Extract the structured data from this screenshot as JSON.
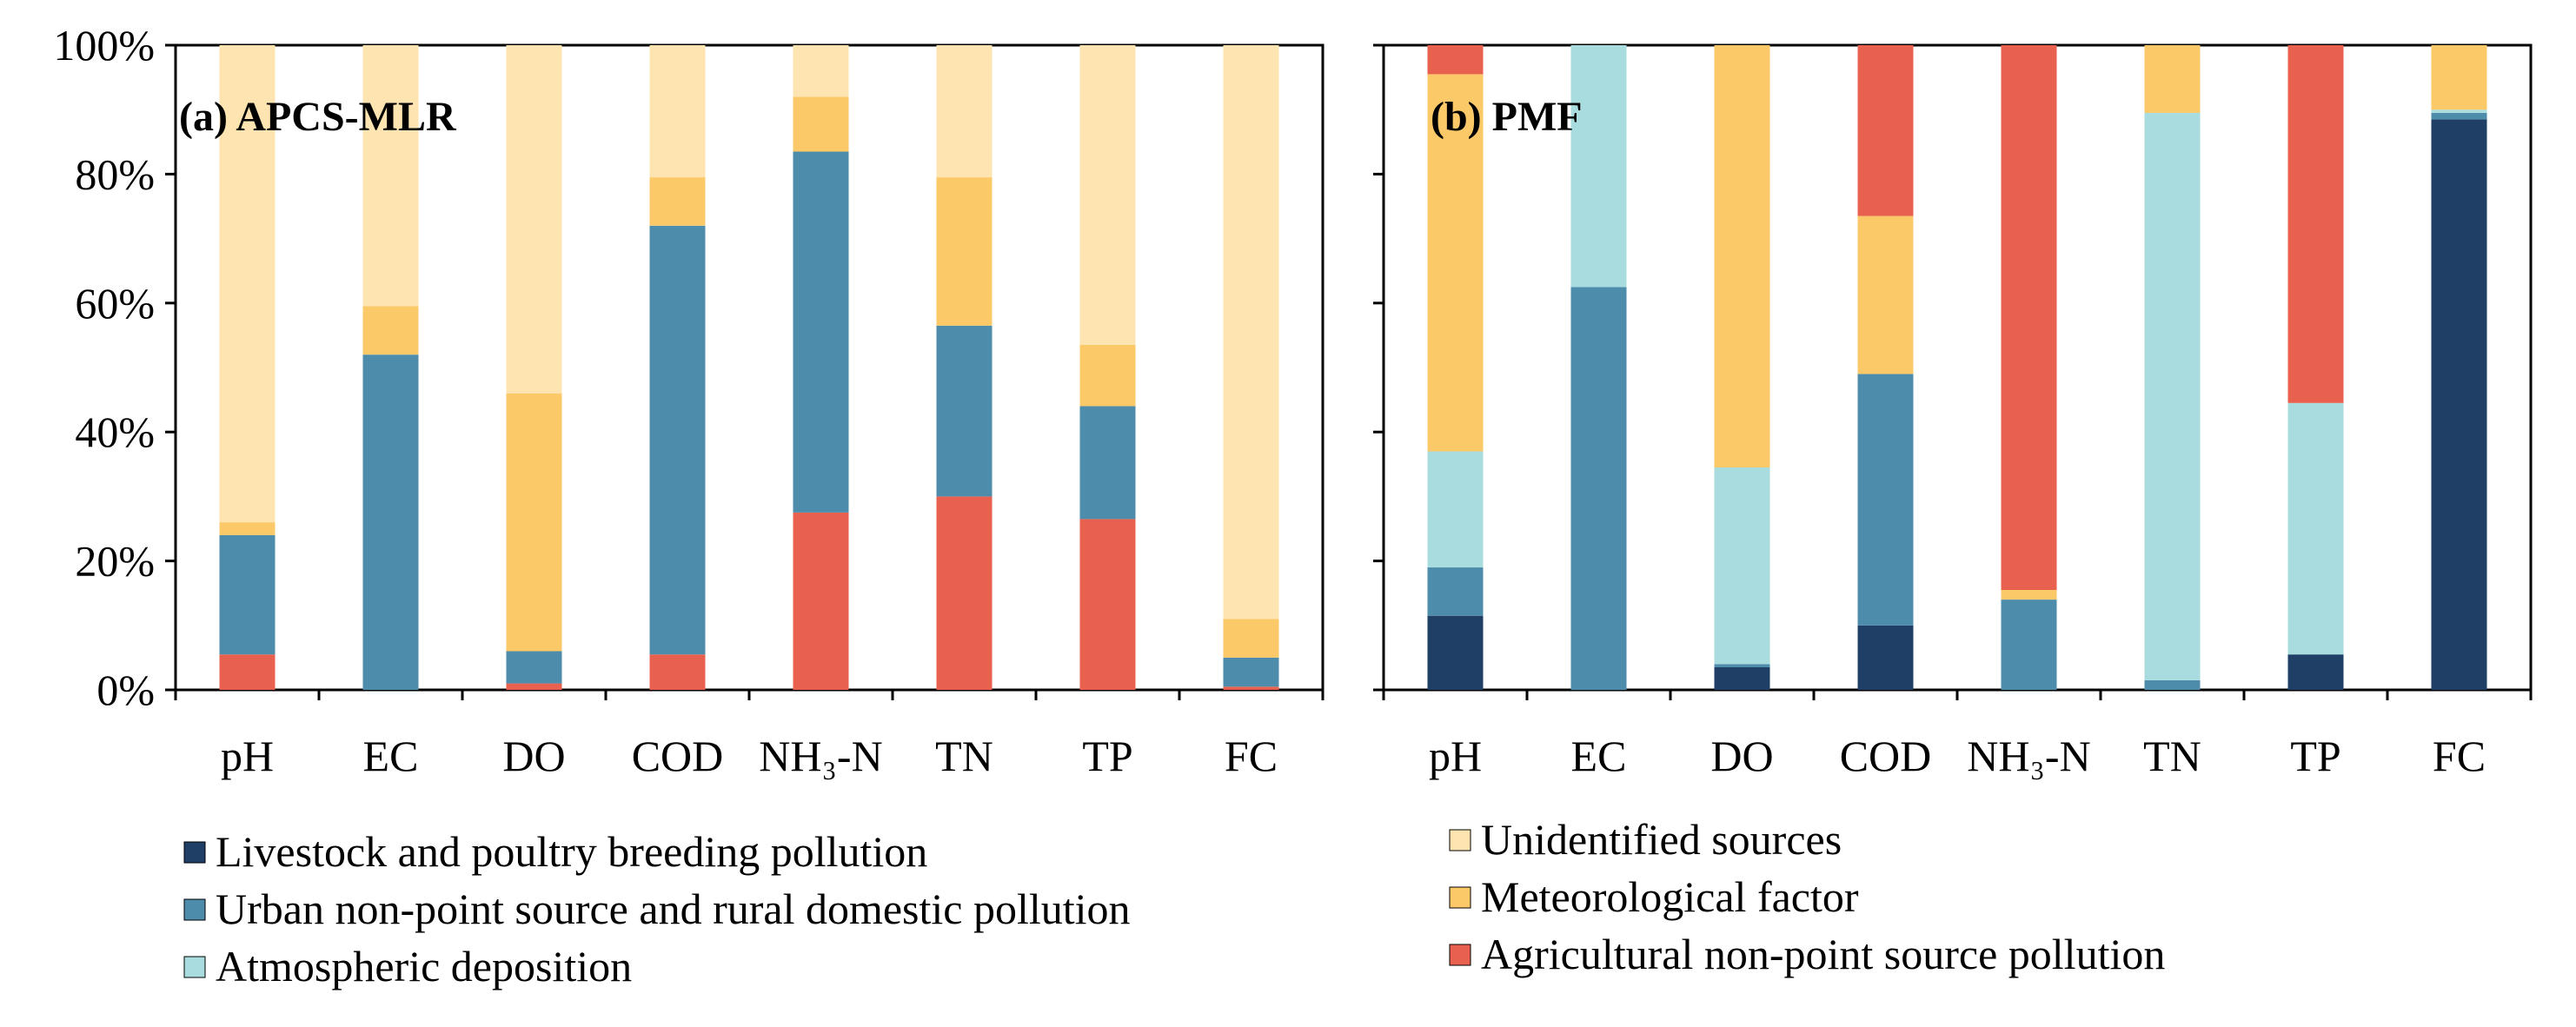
{
  "sources": [
    {
      "key": "livestock",
      "label": "Livestock and poultry breeding pollution",
      "color": "#1f3f66"
    },
    {
      "key": "urban",
      "label": "Urban non-point source and rural domestic pollution",
      "color": "#4e8cac"
    },
    {
      "key": "atmospheric",
      "label": "Atmospheric deposition",
      "color": "#a9dcde"
    },
    {
      "key": "agricultural",
      "label": "Agricultural non-point source pollution",
      "color": "#e8604e"
    },
    {
      "key": "meteorological",
      "label": "Meteorological factor",
      "color": "#fcc968"
    },
    {
      "key": "unidentified",
      "label": "Unidentified sources",
      "color": "#fde4b0"
    }
  ],
  "chart_data": [
    {
      "type": "bar",
      "stacked": true,
      "title": "(a) APCS-MLR",
      "categories": [
        "pH",
        "EC",
        "DO",
        "COD",
        "NH₃-N",
        "TN",
        "TP",
        "FC"
      ],
      "y_ticks": [
        "0%",
        "20%",
        "40%",
        "60%",
        "80%",
        "100%"
      ],
      "ylim": [
        0,
        100
      ],
      "series": [
        {
          "name": "Livestock and poultry breeding pollution",
          "values": [
            0,
            0,
            0,
            0,
            0,
            0,
            0,
            0
          ]
        },
        {
          "name": "Agricultural non-point source pollution",
          "values": [
            5.5,
            0,
            1,
            5.5,
            27.5,
            30,
            26.5,
            0.5
          ]
        },
        {
          "name": "Urban non-point source and rural domestic pollution",
          "values": [
            18.5,
            52,
            5,
            66.5,
            56,
            26.5,
            17.5,
            4.5
          ]
        },
        {
          "name": "Atmospheric deposition",
          "values": [
            0,
            0,
            0,
            0,
            0,
            0,
            0,
            0
          ]
        },
        {
          "name": "Meteorological factor",
          "values": [
            2,
            7.5,
            40,
            7.5,
            8.5,
            23,
            9.5,
            6
          ]
        },
        {
          "name": "Unidentified sources",
          "values": [
            74,
            40.5,
            54,
            20.5,
            8,
            20.5,
            46.5,
            89
          ]
        }
      ]
    },
    {
      "type": "bar",
      "stacked": true,
      "title": "(b) PMF",
      "categories": [
        "pH",
        "EC",
        "DO",
        "COD",
        "NH₃-N",
        "TN",
        "TP",
        "FC"
      ],
      "y_ticks": [
        "0%",
        "20%",
        "40%",
        "60%",
        "80%",
        "100%"
      ],
      "ylim": [
        0,
        100
      ],
      "series": [
        {
          "name": "Livestock and poultry breeding pollution",
          "values": [
            11.5,
            0,
            3.5,
            10,
            0,
            0,
            5.5,
            88.5
          ]
        },
        {
          "name": "Urban non-point source and rural domestic pollution",
          "values": [
            7.5,
            62.5,
            0.5,
            39,
            14,
            1.5,
            0,
            1
          ]
        },
        {
          "name": "Atmospheric deposition",
          "values": [
            18,
            37.5,
            30.5,
            0,
            0,
            88,
            39,
            0.5
          ]
        },
        {
          "name": "Meteorological factor",
          "values": [
            58.5,
            0,
            65.5,
            24.5,
            1.5,
            10.5,
            0,
            10
          ]
        },
        {
          "name": "Agricultural non-point source pollution",
          "values": [
            4.5,
            0,
            0,
            26.5,
            84.5,
            0,
            55.5,
            0
          ]
        },
        {
          "name": "Unidentified sources",
          "values": [
            0,
            0,
            0,
            0,
            0,
            0,
            0,
            0
          ]
        }
      ]
    }
  ]
}
